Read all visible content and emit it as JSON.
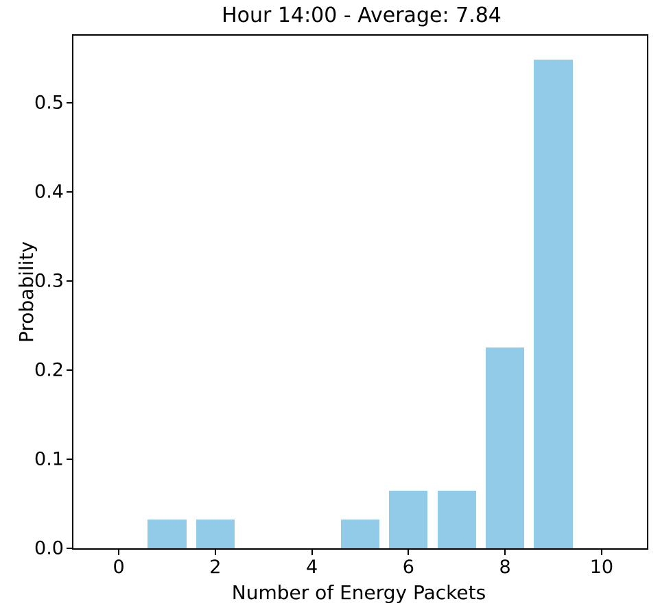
{
  "chart_data": {
    "type": "bar",
    "title": "Hour 14:00 - Average: 7.84",
    "xlabel": "Number of Energy Packets",
    "ylabel": "Probability",
    "categories": [
      0,
      1,
      2,
      3,
      4,
      5,
      6,
      7,
      8,
      9,
      10
    ],
    "values": [
      0,
      0.0323,
      0.0323,
      0,
      0,
      0.0323,
      0.0645,
      0.0645,
      0.2258,
      0.5484,
      0
    ],
    "x_ticks": [
      0,
      2,
      4,
      6,
      8,
      10
    ],
    "y_ticks": [
      0.0,
      0.1,
      0.2,
      0.3,
      0.4,
      0.5
    ],
    "y_tick_labels": [
      "0.0",
      "0.1",
      "0.2",
      "0.3",
      "0.4",
      "0.5"
    ],
    "xlim": [
      -0.94,
      10.94
    ],
    "ylim": [
      0,
      0.5754
    ],
    "bar_width": 0.8,
    "bar_color": "#92CBE8",
    "spine_color": "#000000",
    "grid": false,
    "legend": null,
    "average_shown_in_title": 7.84,
    "hour_shown_in_title": "14:00"
  }
}
